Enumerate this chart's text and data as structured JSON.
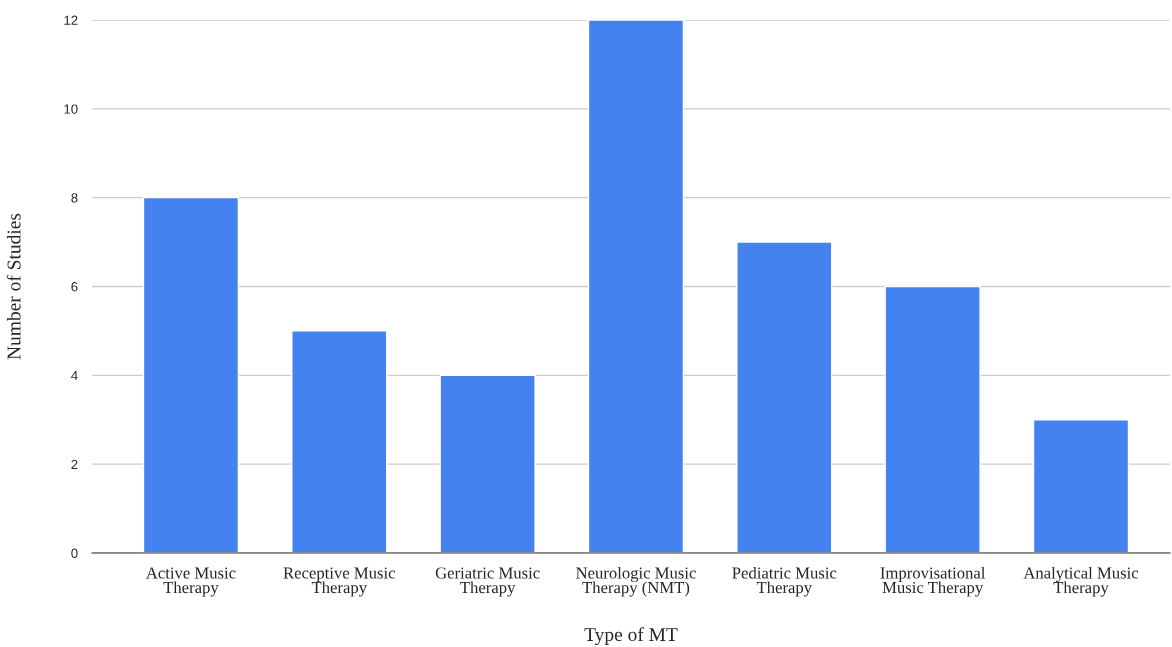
{
  "chart_data": {
    "type": "bar",
    "xlabel": "Type of MT",
    "ylabel": "Number of Studies",
    "categories": [
      "Active Music\nTherapy",
      "Receptive Music\nTherapy",
      "Geriatric Music\nTherapy",
      "Neurologic Music\nTherapy (NMT)",
      "Pediatric Music\nTherapy",
      "Improvisational\nMusic Therapy",
      "Analytical Music\nTherapy"
    ],
    "values": [
      8,
      5,
      4,
      12,
      7,
      6,
      3
    ],
    "color": "#4482f0",
    "ylim": [
      0,
      12
    ],
    "yticks": [
      0,
      2,
      4,
      6,
      8,
      10,
      12
    ],
    "grid": "y",
    "legend": false
  }
}
